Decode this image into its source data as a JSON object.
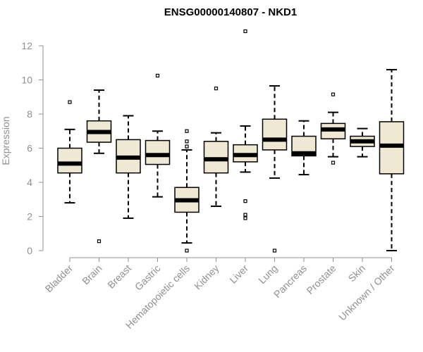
{
  "chart_data": {
    "type": "boxplot",
    "title": "ENSG00000140807 - NKD1",
    "ylabel": "Expression",
    "ylim": [
      0,
      12
    ],
    "yticks": [
      0,
      2,
      4,
      6,
      8,
      10,
      12
    ],
    "box_fill": "#efe9d3",
    "box_stroke": "#000000",
    "categories": [
      "Bladder",
      "Brain",
      "Breast",
      "Gastric",
      "Hematopoietic cells",
      "Kidney",
      "Liver",
      "Lung",
      "Pancreas",
      "Prostate",
      "Skin",
      "Unknown / Other"
    ],
    "series": [
      {
        "category": "Bladder",
        "whisker_low": 2.8,
        "q1": 4.55,
        "median": 5.1,
        "q3": 6.0,
        "whisker_high": 7.1,
        "outliers": [
          8.7
        ]
      },
      {
        "category": "Brain",
        "whisker_low": 5.7,
        "q1": 6.35,
        "median": 6.95,
        "q3": 7.6,
        "whisker_high": 9.4,
        "outliers": [
          0.55
        ]
      },
      {
        "category": "Breast",
        "whisker_low": 1.9,
        "q1": 4.55,
        "median": 5.45,
        "q3": 6.5,
        "whisker_high": 7.9,
        "outliers": []
      },
      {
        "category": "Gastric",
        "whisker_low": 3.15,
        "q1": 5.05,
        "median": 5.6,
        "q3": 6.45,
        "whisker_high": 7.0,
        "outliers": [
          10.25
        ]
      },
      {
        "category": "Hematopoietic cells",
        "whisker_low": 0.45,
        "q1": 2.25,
        "median": 2.95,
        "q3": 3.7,
        "whisker_high": 5.9,
        "outliers": [
          7.0,
          6.4,
          6.1,
          0.0
        ]
      },
      {
        "category": "Kidney",
        "whisker_low": 2.6,
        "q1": 4.55,
        "median": 5.35,
        "q3": 6.4,
        "whisker_high": 6.9,
        "outliers": [
          9.5
        ]
      },
      {
        "category": "Liver",
        "whisker_low": 4.6,
        "q1": 5.2,
        "median": 5.6,
        "q3": 6.2,
        "whisker_high": 7.3,
        "outliers": [
          12.85,
          2.9,
          2.1,
          1.9
        ]
      },
      {
        "category": "Lung",
        "whisker_low": 4.25,
        "q1": 5.9,
        "median": 6.5,
        "q3": 7.7,
        "whisker_high": 9.65,
        "outliers": [
          0.0
        ]
      },
      {
        "category": "Pancreas",
        "whisker_low": 4.45,
        "q1": 5.55,
        "median": 5.7,
        "q3": 6.7,
        "whisker_high": 7.6,
        "outliers": []
      },
      {
        "category": "Prostate",
        "whisker_low": 5.5,
        "q1": 6.55,
        "median": 7.1,
        "q3": 7.45,
        "whisker_high": 8.1,
        "outliers": [
          9.15,
          5.15
        ]
      },
      {
        "category": "Skin",
        "whisker_low": 5.5,
        "q1": 6.1,
        "median": 6.4,
        "q3": 6.7,
        "whisker_high": 7.15,
        "outliers": []
      },
      {
        "category": "Unknown / Other",
        "whisker_low": 0.0,
        "q1": 4.5,
        "median": 6.15,
        "q3": 7.55,
        "whisker_high": 10.6,
        "outliers": []
      }
    ]
  }
}
